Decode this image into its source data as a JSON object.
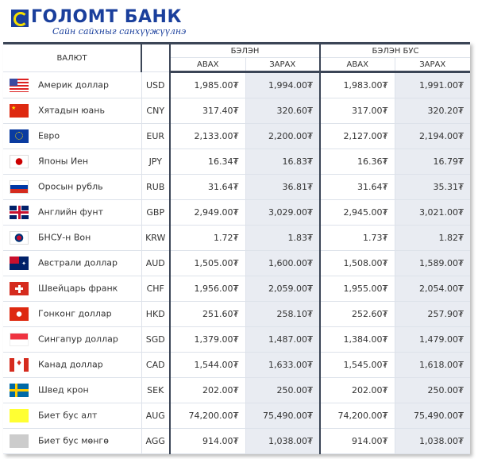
{
  "brand": {
    "name": "ГОЛОМТ БАНК",
    "slogan": "Сайн сайхныг санхүүжүүлнэ",
    "color": "#1a3f9c"
  },
  "table": {
    "currency_header": "ВАЛЮТ",
    "cash_header": "БЭЛЭН",
    "noncash_header": "БЭЛЭН БУС",
    "buy_label": "АВАХ",
    "sell_label": "ЗАРАХ",
    "rows": [
      {
        "flag": "us-flag",
        "code": "USD",
        "name": "Америк доллар",
        "cash_buy": "1,985.00₮",
        "cash_sell": "1,994.00₮",
        "noncash_buy": "1,983.00₮",
        "noncash_sell": "1,991.00₮"
      },
      {
        "flag": "china-flag",
        "code": "CNY",
        "name": "Хятадын юань",
        "cash_buy": "317.40₮",
        "cash_sell": "320.60₮",
        "noncash_buy": "317.00₮",
        "noncash_sell": "320.20₮"
      },
      {
        "flag": "eu-flag",
        "code": "EUR",
        "name": "Евро",
        "cash_buy": "2,133.00₮",
        "cash_sell": "2,200.00₮",
        "noncash_buy": "2,127.00₮",
        "noncash_sell": "2,194.00₮"
      },
      {
        "flag": "japan-flag",
        "code": "JPY",
        "name": "Японы Иен",
        "cash_buy": "16.34₮",
        "cash_sell": "16.83₮",
        "noncash_buy": "16.36₮",
        "noncash_sell": "16.79₮"
      },
      {
        "flag": "russia-flag",
        "code": "RUB",
        "name": "Оросын рубль",
        "cash_buy": "31.64₮",
        "cash_sell": "36.81₮",
        "noncash_buy": "31.64₮",
        "noncash_sell": "35.31₮"
      },
      {
        "flag": "uk-flag",
        "code": "GBP",
        "name": "Английн фунт",
        "cash_buy": "2,949.00₮",
        "cash_sell": "3,029.00₮",
        "noncash_buy": "2,945.00₮",
        "noncash_sell": "3,021.00₮"
      },
      {
        "flag": "korea-flag",
        "code": "KRW",
        "name": "БНСУ-н Вон",
        "cash_buy": "1.72₮",
        "cash_sell": "1.83₮",
        "noncash_buy": "1.73₮",
        "noncash_sell": "1.82₮"
      },
      {
        "flag": "australia-flag",
        "code": "AUD",
        "name": "Австрали доллар",
        "cash_buy": "1,505.00₮",
        "cash_sell": "1,600.00₮",
        "noncash_buy": "1,508.00₮",
        "noncash_sell": "1,589.00₮"
      },
      {
        "flag": "switzerland-flag",
        "code": "CHF",
        "name": "Швейцарь франк",
        "cash_buy": "1,956.00₮",
        "cash_sell": "2,059.00₮",
        "noncash_buy": "1,955.00₮",
        "noncash_sell": "2,054.00₮"
      },
      {
        "flag": "hongkong-flag",
        "code": "HKD",
        "name": "Гонконг доллар",
        "cash_buy": "251.60₮",
        "cash_sell": "258.10₮",
        "noncash_buy": "252.60₮",
        "noncash_sell": "257.90₮"
      },
      {
        "flag": "singapore-flag",
        "code": "SGD",
        "name": "Сингапур доллар",
        "cash_buy": "1,379.00₮",
        "cash_sell": "1,487.00₮",
        "noncash_buy": "1,384.00₮",
        "noncash_sell": "1,479.00₮"
      },
      {
        "flag": "canada-flag",
        "code": "CAD",
        "name": "Канад доллар",
        "cash_buy": "1,544.00₮",
        "cash_sell": "1,633.00₮",
        "noncash_buy": "1,545.00₮",
        "noncash_sell": "1,618.00₮"
      },
      {
        "flag": "sweden-flag",
        "code": "SEK",
        "name": "Швед крон",
        "cash_buy": "202.00₮",
        "cash_sell": "250.00₮",
        "noncash_buy": "202.00₮",
        "noncash_sell": "250.00₮"
      },
      {
        "flag": "gold-swatch",
        "code": "AUG",
        "name": "Биет бус алт",
        "cash_buy": "74,200.00₮",
        "cash_sell": "75,490.00₮",
        "noncash_buy": "74,200.00₮",
        "noncash_sell": "75,490.00₮"
      },
      {
        "flag": "silver-swatch",
        "code": "AGG",
        "name": "Биет бус мөнгө",
        "cash_buy": "914.00₮",
        "cash_sell": "1,038.00₮",
        "noncash_buy": "914.00₮",
        "noncash_sell": "1,038.00₮"
      }
    ]
  }
}
